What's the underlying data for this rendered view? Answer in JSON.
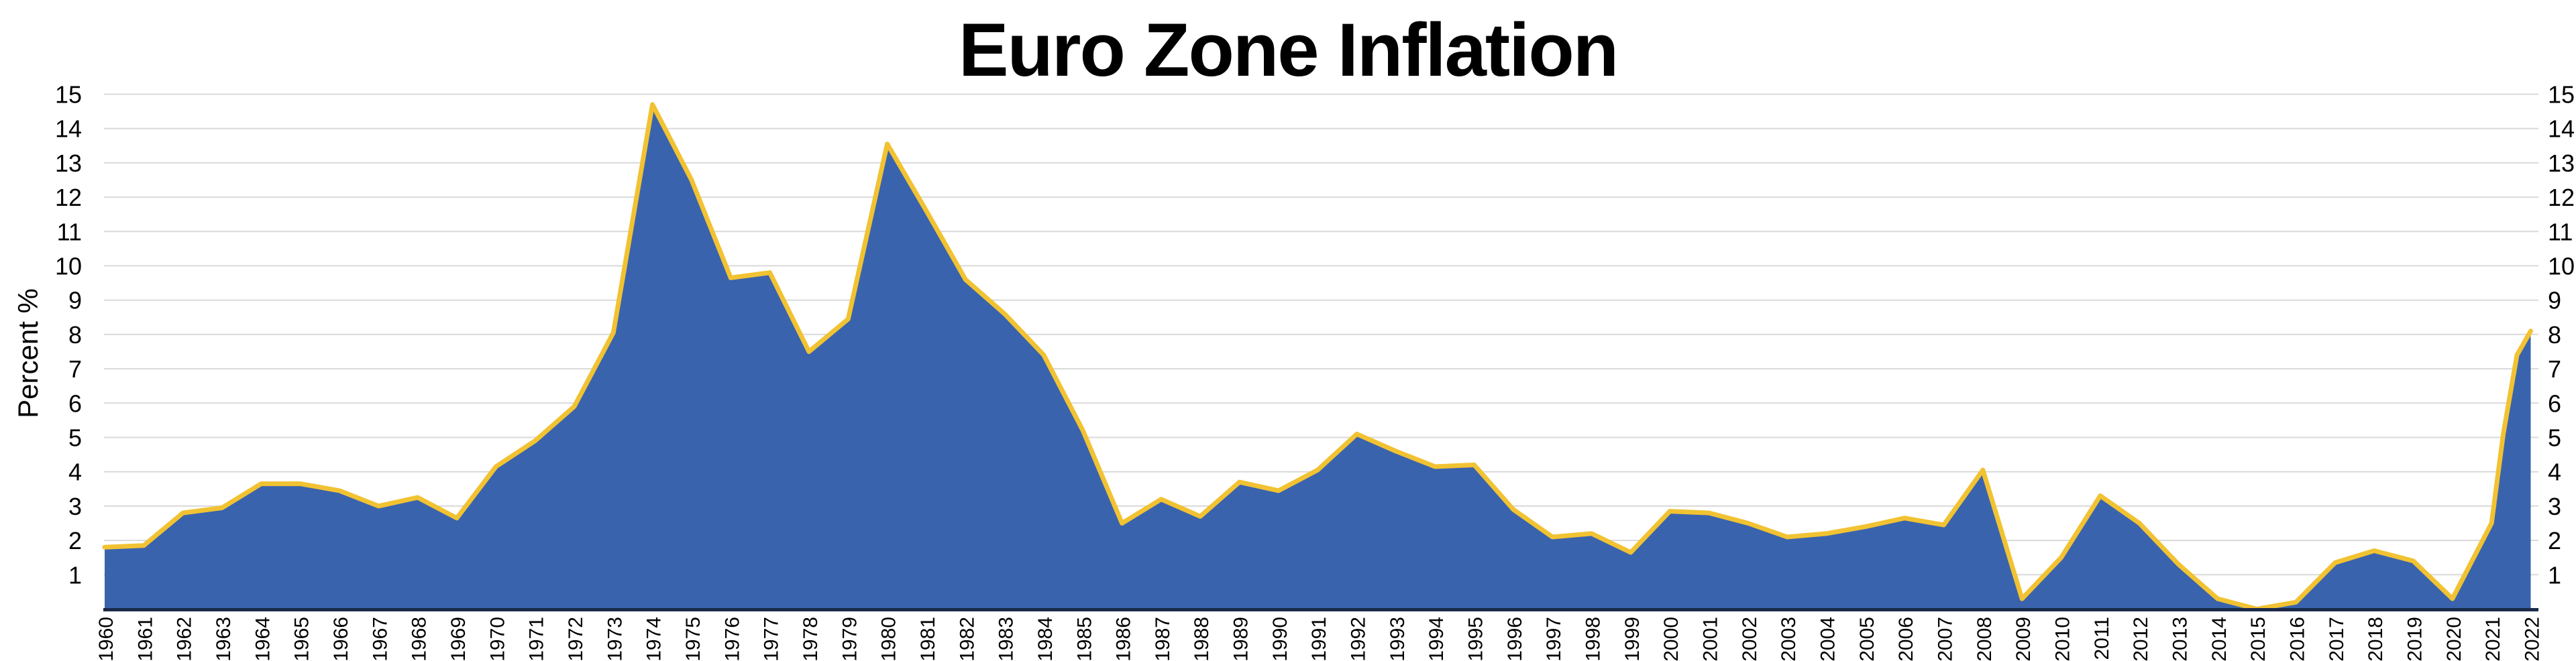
{
  "title": "Euro Zone Inflation",
  "y_axis": {
    "label": "Percent %",
    "tick_labels": [
      "1",
      "2",
      "3",
      "4",
      "5",
      "6",
      "7",
      "8",
      "9",
      "10",
      "11",
      "12",
      "13",
      "14",
      "15"
    ],
    "min": 0,
    "max": 15,
    "shown_on_both_sides": true
  },
  "x_axis": {
    "tick_labels": [
      "1960",
      "1961",
      "1962",
      "1963",
      "1964",
      "1965",
      "1966",
      "1967",
      "1968",
      "1969",
      "1970",
      "1971",
      "1972",
      "1973",
      "1974",
      "1975",
      "1976",
      "1977",
      "1978",
      "1979",
      "1980",
      "1981",
      "1982",
      "1983",
      "1984",
      "1985",
      "1986",
      "1987",
      "1988",
      "1989",
      "1990",
      "1991",
      "1992",
      "1993",
      "1994",
      "1995",
      "1996",
      "1997",
      "1998",
      "1999",
      "2000",
      "2001",
      "2002",
      "2003",
      "2004",
      "2005",
      "2006",
      "2007",
      "2008",
      "2009",
      "2010",
      "2011",
      "2012",
      "2013",
      "2014",
      "2015",
      "2016",
      "2017",
      "2018",
      "2019",
      "2020",
      "2021",
      "2022"
    ]
  },
  "colors": {
    "area_fill": "#3A63AD",
    "line": "#F1C232",
    "gridline": "#D9D9D9",
    "axis_line": "#1B2A4A",
    "text": "#000000",
    "background": "#FFFFFF"
  },
  "chart_data": {
    "type": "area",
    "title": "Euro Zone Inflation",
    "xlabel": "",
    "ylabel": "Percent %",
    "ylim": [
      0,
      15
    ],
    "xlim": [
      1960,
      2022
    ],
    "grid": "horizontal",
    "legend": "none",
    "categories": [
      1960,
      1961,
      1962,
      1963,
      1964,
      1965,
      1966,
      1967,
      1968,
      1969,
      1970,
      1971,
      1972,
      1973,
      1974,
      1975,
      1976,
      1977,
      1978,
      1979,
      1980,
      1981,
      1982,
      1983,
      1984,
      1985,
      1986,
      1987,
      1988,
      1989,
      1990,
      1991,
      1992,
      1993,
      1994,
      1995,
      1996,
      1997,
      1998,
      1999,
      2000,
      2001,
      2002,
      2003,
      2004,
      2005,
      2006,
      2007,
      2008,
      2009,
      2010,
      2011,
      2012,
      2013,
      2014,
      2015,
      2016,
      2017,
      2018,
      2019,
      2020,
      2021,
      2022
    ],
    "values": [
      1.8,
      1.85,
      2.8,
      2.95,
      3.65,
      3.65,
      3.45,
      3.0,
      3.25,
      2.65,
      4.15,
      4.9,
      5.9,
      8.05,
      14.7,
      12.5,
      9.65,
      9.8,
      7.5,
      8.45,
      13.55,
      11.6,
      9.6,
      8.6,
      7.4,
      5.2,
      2.5,
      3.2,
      2.7,
      3.7,
      3.45,
      4.05,
      5.1,
      4.6,
      4.15,
      4.2,
      2.9,
      2.1,
      2.2,
      1.65,
      2.85,
      2.8,
      2.5,
      2.1,
      2.2,
      2.4,
      2.65,
      2.45,
      4.05,
      0.3,
      1.5,
      3.3,
      2.5,
      1.3,
      0.3,
      0.0,
      0.2,
      1.35,
      1.7,
      1.4,
      0.3,
      2.5,
      8.1
    ],
    "intermediate_points_2021_2022": [
      [
        2021.3,
        5.1
      ],
      [
        2021.65,
        7.4
      ]
    ],
    "notes": "Single series; gold line on top edge of solid blue area; horizontal gridlines at every integer 1-15; value ticks labeled on both left and right sides; year labels rotated 90deg reading bottom-to-top."
  }
}
